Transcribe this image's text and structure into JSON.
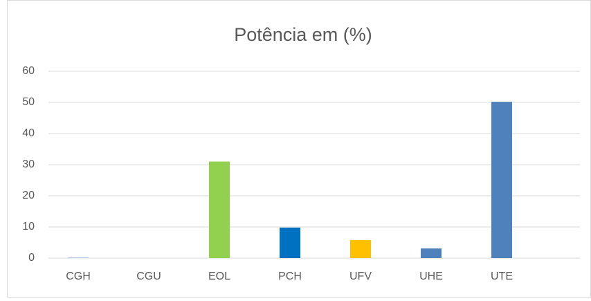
{
  "chart_data": {
    "type": "bar",
    "title": "Potência em (%)",
    "categories": [
      "CGH",
      "CGU",
      "EOL",
      "PCH",
      "UFV",
      "UHE",
      "UTE",
      null
    ],
    "values": [
      0.1,
      0,
      31,
      9.8,
      5.8,
      3.1,
      50.2,
      null
    ],
    "colors": [
      "#4f81bd",
      "#4f81bd",
      "#92d050",
      "#0070c0",
      "#ffc000",
      "#4f81bd",
      "#4f81bd",
      "#4f81bd"
    ],
    "ylim": [
      0,
      60
    ],
    "yticks": [
      0,
      10,
      20,
      30,
      40,
      50,
      60
    ],
    "grid": true
  }
}
